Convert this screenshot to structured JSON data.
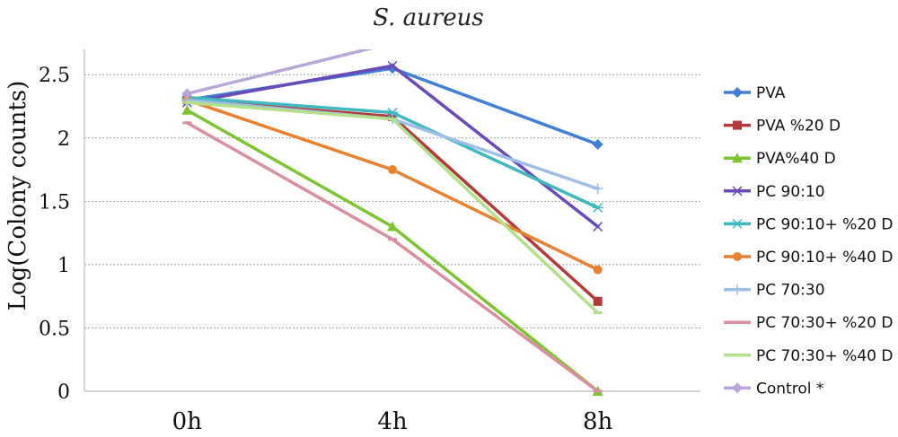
{
  "chart_data": {
    "type": "line",
    "title": "S. aureus",
    "xlabel": "",
    "ylabel": "Log(Colony counts)",
    "categories": [
      "0h",
      "4h",
      "8h"
    ],
    "y_ticks": [
      "0",
      "0.5",
      "1",
      "1.5",
      "2",
      "2.5"
    ],
    "ylim": [
      0,
      2.7
    ],
    "grid": true,
    "legend_position": "right",
    "series": [
      {
        "name": "PVA",
        "values": [
          2.3,
          2.55,
          1.95
        ],
        "color": "#3f7fd6",
        "marker": "diamond"
      },
      {
        "name": "PVA %20 D",
        "values": [
          2.3,
          2.17,
          0.71
        ],
        "color": "#b23a3a",
        "marker": "square"
      },
      {
        "name": "PVA%40 D",
        "values": [
          2.22,
          1.3,
          0.0
        ],
        "color": "#7cc430",
        "marker": "triangle"
      },
      {
        "name": "PC 90:10",
        "values": [
          2.28,
          2.57,
          1.3
        ],
        "color": "#6a4ab8",
        "marker": "x"
      },
      {
        "name": "PC 90:10+ %20 D",
        "values": [
          2.32,
          2.2,
          1.45
        ],
        "color": "#3fb8c0",
        "marker": "asterisk"
      },
      {
        "name": "PC 90:10+ %40 D",
        "values": [
          2.3,
          1.75,
          0.96
        ],
        "color": "#e8822e",
        "marker": "circle"
      },
      {
        "name": "PC 70:30",
        "values": [
          2.3,
          2.15,
          1.6
        ],
        "color": "#9dbfe6",
        "marker": "plus"
      },
      {
        "name": "PC 70:30+ %20 D",
        "values": [
          2.12,
          1.2,
          0.0
        ],
        "color": "#d98fa0",
        "marker": "dash"
      },
      {
        "name": "PC 70:30+ %40 D",
        "values": [
          2.28,
          2.15,
          0.62
        ],
        "color": "#b3e08a",
        "marker": "dash"
      },
      {
        "name": "Control *",
        "values": [
          2.35,
          2.75,
          null
        ],
        "color": "#b6a7d8",
        "marker": "diamond"
      }
    ]
  }
}
